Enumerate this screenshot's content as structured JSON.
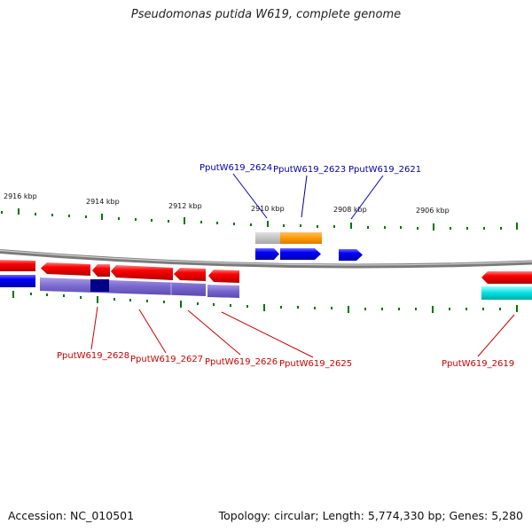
{
  "title": "Pseudomonas putida W619, complete genome",
  "scale": {
    "unit": "kbp",
    "ticks": [
      {
        "label": "2916 kbp"
      },
      {
        "label": "2914 kbp"
      },
      {
        "label": "2912 kbp"
      },
      {
        "label": "2910 kbp"
      },
      {
        "label": "2908 kbp"
      },
      {
        "label": "2906 kbp"
      }
    ]
  },
  "genes_top": [
    {
      "id": "PputW619_2624",
      "color": "#0000aa"
    },
    {
      "id": "PputW619_2623",
      "color": "#0000aa"
    },
    {
      "id": "PputW619_2621",
      "color": "#0000aa"
    }
  ],
  "genes_bottom": [
    {
      "id": "PputW619_2628",
      "color": "#cc0000"
    },
    {
      "id": "PputW619_2627",
      "color": "#cc0000"
    },
    {
      "id": "PputW619_2626",
      "color": "#cc0000"
    },
    {
      "id": "PputW619_2625",
      "color": "#cc0000"
    },
    {
      "id": "PputW619_2619",
      "color": "#cc0000"
    }
  ],
  "colors": {
    "forward_strand": "#0000ff",
    "reverse_strand": "#ff0000",
    "tick": "#007700",
    "backbone": "#777777",
    "track_purple": "#7766cc",
    "track_orange": "#ff9900",
    "track_cyan": "#00dddd"
  },
  "footer": {
    "accession": "Accession: NC_010501",
    "summary": "Topology: circular; Length: 5,774,330 bp; Genes: 5,280"
  }
}
